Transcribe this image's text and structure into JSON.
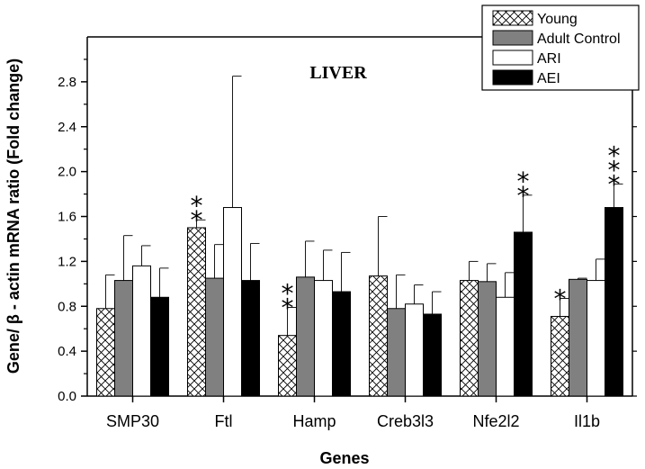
{
  "chart_data": {
    "type": "bar",
    "title": "LIVER",
    "xlabel": "Genes",
    "ylabel": "Gene/ β - actin mRNA ratio (Fold change)",
    "ylim": [
      0,
      3.2
    ],
    "yticks": [
      "0.0",
      "0.4",
      "0.8",
      "1.2",
      "1.6",
      "2.0",
      "2.4",
      "2.8"
    ],
    "categories": [
      "SMP30",
      "Ftl",
      "Hamp",
      "Creb3l3",
      "Nfe2l2",
      "Il1b"
    ],
    "series": [
      {
        "name": "Young",
        "pattern": "crosshatch",
        "color": "#ffffff",
        "values": [
          0.78,
          1.5,
          0.54,
          1.07,
          1.03,
          0.71
        ],
        "errors": [
          0.3,
          0.07,
          0.25,
          0.53,
          0.17,
          0.16
        ],
        "stars": [
          "",
          "**",
          "**",
          "",
          "",
          "*"
        ]
      },
      {
        "name": "Adult Control",
        "pattern": "solid",
        "color": "#808080",
        "values": [
          1.03,
          1.05,
          1.06,
          0.78,
          1.02,
          1.04
        ],
        "errors": [
          0.4,
          0.3,
          0.32,
          0.3,
          0.16,
          0.01
        ],
        "stars": [
          "",
          "",
          "",
          "",
          "",
          ""
        ]
      },
      {
        "name": "ARI",
        "pattern": "solid",
        "color": "#ffffff",
        "values": [
          1.16,
          1.68,
          1.03,
          0.82,
          0.88,
          1.03
        ],
        "errors": [
          0.18,
          1.17,
          0.27,
          0.17,
          0.22,
          0.19
        ],
        "stars": [
          "",
          "",
          "",
          "",
          "",
          ""
        ]
      },
      {
        "name": "AEI",
        "pattern": "solid",
        "color": "#000000",
        "values": [
          0.88,
          1.03,
          0.93,
          0.73,
          1.46,
          1.68
        ],
        "errors": [
          0.26,
          0.33,
          0.35,
          0.2,
          0.33,
          0.21
        ],
        "stars": [
          "",
          "",
          "",
          "",
          "**",
          "***"
        ]
      }
    ],
    "legend_position": "top-right",
    "grid": false
  }
}
